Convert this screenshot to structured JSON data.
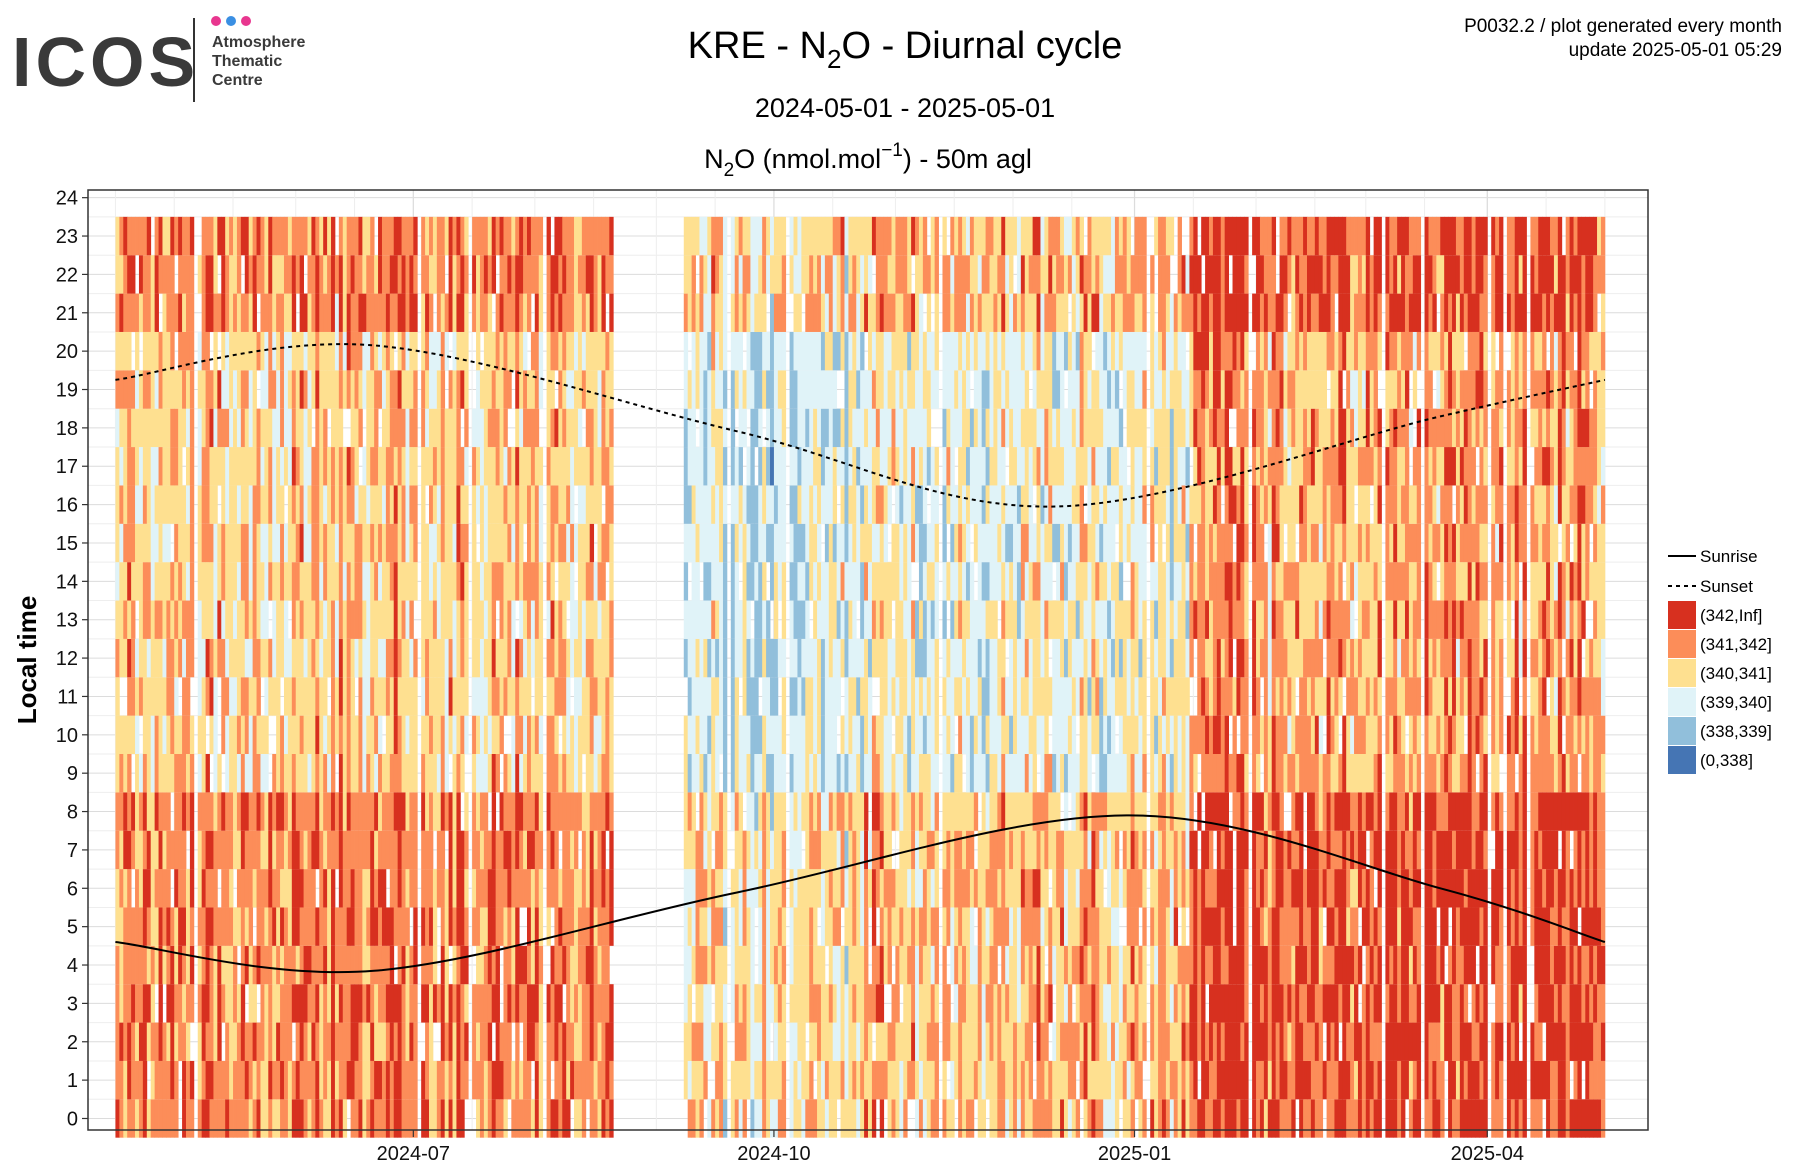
{
  "header": {
    "logo_text": "ICOS",
    "logo_sub": [
      "Atmosphere",
      "Thematic",
      "Centre"
    ],
    "logo_dot_colors": [
      "#e8368f",
      "#3a8fe3",
      "#e8368f"
    ],
    "title_main": "KRE - N",
    "title_sub": "2",
    "title_rest": "O - Diurnal cycle",
    "date_range": "2024-05-01 - 2025-05-01",
    "plot_id": "P0032.2 / plot generated every month",
    "update": "update  2025-05-01 05:29"
  },
  "chart_data": {
    "type": "heatmap",
    "title": "N2O (nmol.mol-1) - 50m agl",
    "subtitle_parts": {
      "a": "N",
      "sub": "2",
      "b": "O (nmol.mol",
      "sup": "−1",
      "c": ") - 50m agl"
    },
    "ylabel": "Local time",
    "xlabel": "",
    "x_range": [
      "2024-04-09",
      "2025-05-12"
    ],
    "data_range": [
      "2024-04-16",
      "2025-05-01"
    ],
    "data_gap": [
      "2024-08-22",
      "2024-09-08"
    ],
    "y_range": [
      -0.3,
      24.2
    ],
    "y_ticks": [
      0,
      1,
      2,
      3,
      4,
      5,
      6,
      7,
      8,
      9,
      10,
      11,
      12,
      13,
      14,
      15,
      16,
      17,
      18,
      19,
      20,
      21,
      22,
      23,
      24
    ],
    "x_ticks": [
      {
        "date": "2024-07-01",
        "label": "2024-07"
      },
      {
        "date": "2024-10-01",
        "label": "2024-10"
      },
      {
        "date": "2025-01-01",
        "label": "2025-01"
      },
      {
        "date": "2025-04-01",
        "label": "2025-04"
      }
    ],
    "grid": true,
    "legend_placement": "right",
    "bins": [
      {
        "label": "(342,Inf]",
        "color": "#d7301f"
      },
      {
        "label": "(341,342]",
        "color": "#fc8d59"
      },
      {
        "label": "(340,341]",
        "color": "#fee090"
      },
      {
        "label": "(339,340]",
        "color": "#e0f3f8"
      },
      {
        "label": "(338,339]",
        "color": "#91bfdb"
      },
      {
        "label": "(0,338]",
        "color": "#4575b4"
      }
    ],
    "lines": [
      {
        "name": "Sunrise",
        "style": "solid",
        "points": [
          [
            "2024-04-16",
            4.6
          ],
          [
            "2024-06-21",
            3.85
          ],
          [
            "2024-09-22",
            5.9
          ],
          [
            "2024-12-30",
            7.9
          ],
          [
            "2025-03-20",
            6.0
          ],
          [
            "2025-05-01",
            4.6
          ]
        ]
      },
      {
        "name": "Sunset",
        "style": "dashed",
        "points": [
          [
            "2024-04-16",
            19.25
          ],
          [
            "2024-06-21",
            20.15
          ],
          [
            "2024-09-22",
            17.9
          ],
          [
            "2024-12-12",
            15.95
          ],
          [
            "2025-03-20",
            18.3
          ],
          [
            "2025-05-01",
            19.25
          ]
        ]
      }
    ]
  }
}
